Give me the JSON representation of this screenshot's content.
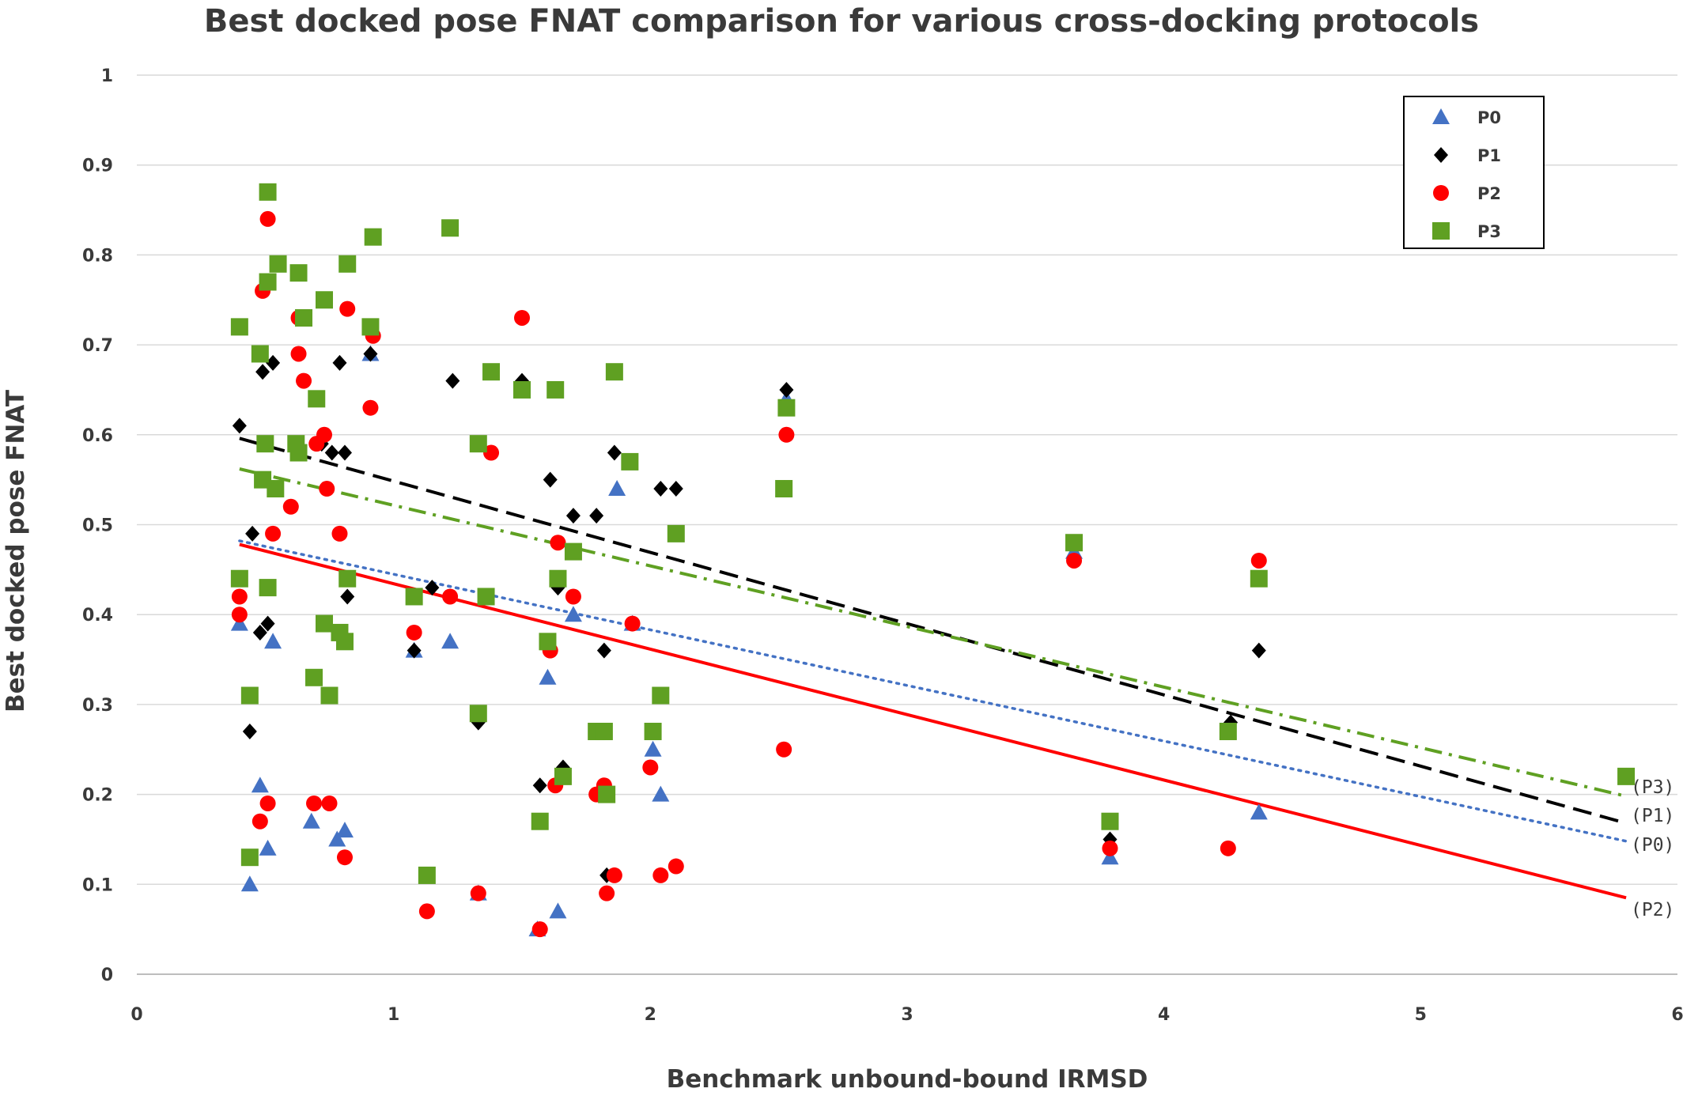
{
  "chart_data": {
    "type": "scatter",
    "title": "Best docked pose FNAT comparison for various cross-docking protocols",
    "xlabel": "Benchmark unbound-bound IRMSD",
    "ylabel": "Best docked pose FNAT",
    "xlim": [
      0,
      6
    ],
    "ylim": [
      0,
      1
    ],
    "x_ticks": [
      "0",
      "1",
      "2",
      "3",
      "4",
      "5",
      "6"
    ],
    "y_ticks": [
      "0",
      "0.1",
      "0.2",
      "0.3",
      "0.4",
      "0.5",
      "0.6",
      "0.7",
      "0.8",
      "0.9",
      "1"
    ],
    "grid": "horizontal",
    "legend_position": "top-right",
    "series": [
      {
        "name": "P0",
        "marker": "triangle",
        "color": "#4472c4",
        "points": [
          [
            0.4,
            0.39
          ],
          [
            0.44,
            0.1
          ],
          [
            0.48,
            0.21
          ],
          [
            0.51,
            0.14
          ],
          [
            0.53,
            0.37
          ],
          [
            0.68,
            0.17
          ],
          [
            0.78,
            0.15
          ],
          [
            0.81,
            0.16
          ],
          [
            0.91,
            0.69
          ],
          [
            1.08,
            0.36
          ],
          [
            1.22,
            0.37
          ],
          [
            1.33,
            0.09
          ],
          [
            1.56,
            0.05
          ],
          [
            1.6,
            0.33
          ],
          [
            1.64,
            0.07
          ],
          [
            1.7,
            0.4
          ],
          [
            1.87,
            0.54
          ],
          [
            1.93,
            0.39
          ],
          [
            2.01,
            0.25
          ],
          [
            2.04,
            0.2
          ],
          [
            2.52,
            0.54
          ],
          [
            2.53,
            0.64
          ],
          [
            3.65,
            0.47
          ],
          [
            3.79,
            0.13
          ],
          [
            4.25,
            0.27
          ],
          [
            4.37,
            0.18
          ],
          [
            5.8,
            0.22
          ]
        ]
      },
      {
        "name": "P1",
        "marker": "diamond",
        "color": "#000000",
        "points": [
          [
            0.4,
            0.61
          ],
          [
            0.44,
            0.27
          ],
          [
            0.45,
            0.49
          ],
          [
            0.48,
            0.38
          ],
          [
            0.49,
            0.67
          ],
          [
            0.51,
            0.39
          ],
          [
            0.53,
            0.68
          ],
          [
            0.72,
            0.59
          ],
          [
            0.76,
            0.58
          ],
          [
            0.79,
            0.68
          ],
          [
            0.81,
            0.58
          ],
          [
            0.82,
            0.42
          ],
          [
            0.91,
            0.69
          ],
          [
            1.08,
            0.36
          ],
          [
            1.15,
            0.43
          ],
          [
            1.23,
            0.66
          ],
          [
            1.33,
            0.28
          ],
          [
            1.5,
            0.66
          ],
          [
            1.57,
            0.21
          ],
          [
            1.61,
            0.55
          ],
          [
            1.64,
            0.43
          ],
          [
            1.66,
            0.23
          ],
          [
            1.7,
            0.51
          ],
          [
            1.79,
            0.51
          ],
          [
            1.82,
            0.36
          ],
          [
            1.83,
            0.11
          ],
          [
            1.86,
            0.58
          ],
          [
            2.04,
            0.54
          ],
          [
            2.1,
            0.54
          ],
          [
            2.53,
            0.65
          ],
          [
            3.79,
            0.15
          ],
          [
            4.26,
            0.28
          ],
          [
            4.37,
            0.36
          ]
        ]
      },
      {
        "name": "P2",
        "marker": "circle",
        "color": "#ff0000",
        "points": [
          [
            0.4,
            0.42
          ],
          [
            0.4,
            0.4
          ],
          [
            0.48,
            0.17
          ],
          [
            0.49,
            0.76
          ],
          [
            0.51,
            0.19
          ],
          [
            0.51,
            0.84
          ],
          [
            0.53,
            0.49
          ],
          [
            0.6,
            0.52
          ],
          [
            0.63,
            0.69
          ],
          [
            0.63,
            0.73
          ],
          [
            0.65,
            0.66
          ],
          [
            0.69,
            0.19
          ],
          [
            0.7,
            0.59
          ],
          [
            0.73,
            0.6
          ],
          [
            0.74,
            0.54
          ],
          [
            0.75,
            0.19
          ],
          [
            0.79,
            0.49
          ],
          [
            0.81,
            0.13
          ],
          [
            0.82,
            0.74
          ],
          [
            0.91,
            0.63
          ],
          [
            0.92,
            0.71
          ],
          [
            1.08,
            0.38
          ],
          [
            1.13,
            0.07
          ],
          [
            1.22,
            0.42
          ],
          [
            1.33,
            0.09
          ],
          [
            1.38,
            0.58
          ],
          [
            1.5,
            0.73
          ],
          [
            1.57,
            0.05
          ],
          [
            1.61,
            0.36
          ],
          [
            1.63,
            0.21
          ],
          [
            1.64,
            0.48
          ],
          [
            1.7,
            0.42
          ],
          [
            1.79,
            0.2
          ],
          [
            1.82,
            0.21
          ],
          [
            1.83,
            0.09
          ],
          [
            1.86,
            0.11
          ],
          [
            1.93,
            0.39
          ],
          [
            2.0,
            0.23
          ],
          [
            2.04,
            0.11
          ],
          [
            2.1,
            0.12
          ],
          [
            2.52,
            0.25
          ],
          [
            2.53,
            0.6
          ],
          [
            3.65,
            0.46
          ],
          [
            3.79,
            0.14
          ],
          [
            4.25,
            0.14
          ],
          [
            4.37,
            0.46
          ],
          [
            5.8,
            0.22
          ]
        ]
      },
      {
        "name": "P3",
        "marker": "square",
        "color": "#5fa022",
        "points": [
          [
            0.4,
            0.72
          ],
          [
            0.4,
            0.44
          ],
          [
            0.44,
            0.31
          ],
          [
            0.44,
            0.13
          ],
          [
            0.48,
            0.69
          ],
          [
            0.49,
            0.55
          ],
          [
            0.5,
            0.59
          ],
          [
            0.51,
            0.43
          ],
          [
            0.51,
            0.87
          ],
          [
            0.51,
            0.77
          ],
          [
            0.54,
            0.54
          ],
          [
            0.55,
            0.79
          ],
          [
            0.62,
            0.59
          ],
          [
            0.63,
            0.58
          ],
          [
            0.63,
            0.78
          ],
          [
            0.65,
            0.73
          ],
          [
            0.69,
            0.33
          ],
          [
            0.7,
            0.64
          ],
          [
            0.73,
            0.75
          ],
          [
            0.73,
            0.39
          ],
          [
            0.75,
            0.31
          ],
          [
            0.79,
            0.38
          ],
          [
            0.81,
            0.37
          ],
          [
            0.82,
            0.44
          ],
          [
            0.82,
            0.79
          ],
          [
            0.91,
            0.72
          ],
          [
            0.92,
            0.82
          ],
          [
            1.08,
            0.42
          ],
          [
            1.13,
            0.11
          ],
          [
            1.22,
            0.83
          ],
          [
            1.33,
            0.29
          ],
          [
            1.33,
            0.59
          ],
          [
            1.36,
            0.42
          ],
          [
            1.38,
            0.67
          ],
          [
            1.5,
            0.65
          ],
          [
            1.57,
            0.17
          ],
          [
            1.6,
            0.37
          ],
          [
            1.63,
            0.65
          ],
          [
            1.64,
            0.44
          ],
          [
            1.66,
            0.22
          ],
          [
            1.7,
            0.47
          ],
          [
            1.79,
            0.27
          ],
          [
            1.82,
            0.27
          ],
          [
            1.83,
            0.2
          ],
          [
            1.86,
            0.67
          ],
          [
            1.92,
            0.57
          ],
          [
            2.01,
            0.27
          ],
          [
            2.04,
            0.31
          ],
          [
            2.1,
            0.49
          ],
          [
            2.52,
            0.54
          ],
          [
            2.53,
            0.63
          ],
          [
            3.65,
            0.48
          ],
          [
            3.79,
            0.17
          ],
          [
            4.25,
            0.27
          ],
          [
            4.37,
            0.44
          ],
          [
            5.8,
            0.22
          ]
        ]
      }
    ],
    "trendlines": [
      {
        "name": "P0",
        "label": "(P0)",
        "style": "dotted",
        "color": "#4472c4",
        "x": [
          0.4,
          5.8
        ],
        "y": [
          0.482,
          0.148
        ]
      },
      {
        "name": "P1",
        "label": "(P1)",
        "style": "dashed",
        "color": "#000000",
        "x": [
          0.4,
          5.8
        ],
        "y": [
          0.596,
          0.168
        ]
      },
      {
        "name": "P2",
        "label": "(P2)",
        "style": "solid",
        "color": "#ff0000",
        "x": [
          0.4,
          5.8
        ],
        "y": [
          0.478,
          0.085
        ]
      },
      {
        "name": "P3",
        "label": "(P3)",
        "style": "dash-dot",
        "color": "#5fa022",
        "x": [
          0.4,
          5.8
        ],
        "y": [
          0.562,
          0.198
        ]
      }
    ]
  }
}
